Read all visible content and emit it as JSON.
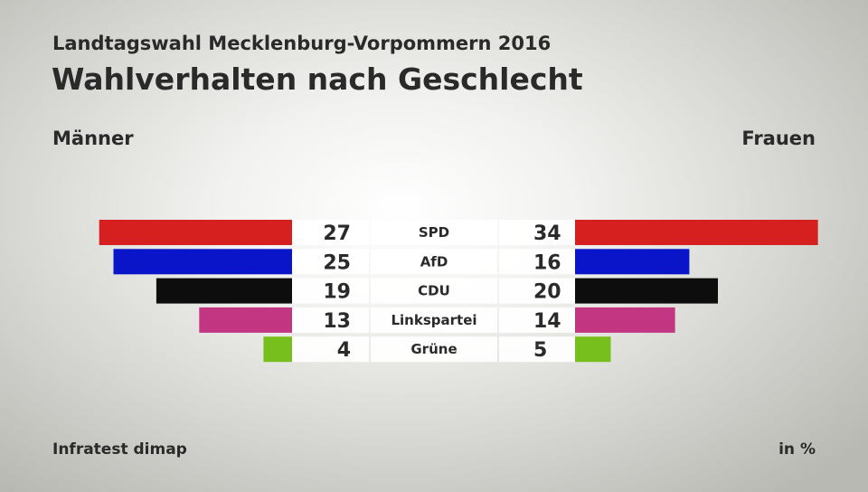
{
  "header": {
    "subtitle": "Landtagswahl Mecklenburg-Vorpommern 2016",
    "title": "Wahlverhalten nach Geschlecht"
  },
  "labels": {
    "left": "Männer",
    "right": "Frauen"
  },
  "footer": {
    "source": "Infratest dimap",
    "unit": "in %"
  },
  "chart_data": {
    "type": "bar",
    "orientation": "horizontal-butterfly",
    "title": "Wahlverhalten nach Geschlecht",
    "subtitle": "Landtagswahl Mecklenburg-Vorpommern 2016",
    "unit": "in %",
    "categories": [
      "SPD",
      "AfD",
      "CDU",
      "Linkspartei",
      "Grüne"
    ],
    "colors": [
      "#d61f1f",
      "#0a14c8",
      "#0d0d0d",
      "#c33682",
      "#77bf1c"
    ],
    "series": [
      {
        "name": "Männer",
        "values": [
          27,
          25,
          19,
          13,
          4
        ]
      },
      {
        "name": "Frauen",
        "values": [
          34,
          16,
          20,
          14,
          5
        ]
      }
    ],
    "xlim": [
      0,
      34
    ]
  }
}
